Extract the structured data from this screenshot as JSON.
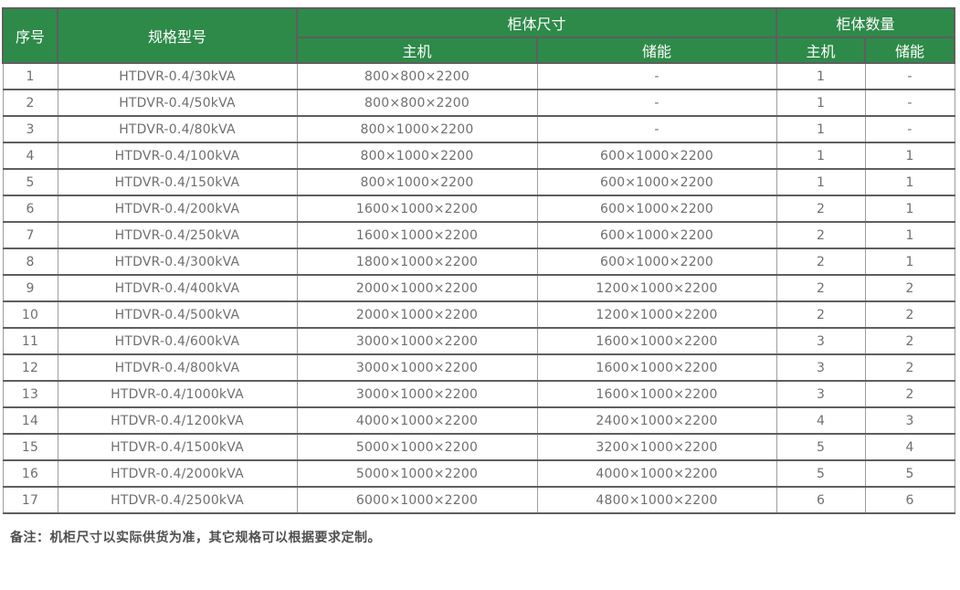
{
  "table": {
    "header": {
      "col_serial": "序号",
      "col_model": "规格型号",
      "group_size": "柜体尺寸",
      "group_qty": "柜体数量",
      "size_sub": {
        "main": "主机",
        "storage": "储能"
      },
      "qty_sub": {
        "main": "主机",
        "storage": "储能"
      }
    },
    "rows": [
      {
        "no": "1",
        "model": "HTDVR-0.4/30kVA",
        "main_size": "800×800×2200",
        "storage_size": "-",
        "main_qty": "1",
        "storage_qty": "-"
      },
      {
        "no": "2",
        "model": "HTDVR-0.4/50kVA",
        "main_size": "800×800×2200",
        "storage_size": "-",
        "main_qty": "1",
        "storage_qty": "-"
      },
      {
        "no": "3",
        "model": "HTDVR-0.4/80kVA",
        "main_size": "800×1000×2200",
        "storage_size": "-",
        "main_qty": "1",
        "storage_qty": "-"
      },
      {
        "no": "4",
        "model": "HTDVR-0.4/100kVA",
        "main_size": "800×1000×2200",
        "storage_size": "600×1000×2200",
        "main_qty": "1",
        "storage_qty": "1"
      },
      {
        "no": "5",
        "model": "HTDVR-0.4/150kVA",
        "main_size": "800×1000×2200",
        "storage_size": "600×1000×2200",
        "main_qty": "1",
        "storage_qty": "1"
      },
      {
        "no": "6",
        "model": "HTDVR-0.4/200kVA",
        "main_size": "1600×1000×2200",
        "storage_size": "600×1000×2200",
        "main_qty": "2",
        "storage_qty": "1"
      },
      {
        "no": "7",
        "model": "HTDVR-0.4/250kVA",
        "main_size": "1600×1000×2200",
        "storage_size": "600×1000×2200",
        "main_qty": "2",
        "storage_qty": "1"
      },
      {
        "no": "8",
        "model": "HTDVR-0.4/300kVA",
        "main_size": "1800×1000×2200",
        "storage_size": "600×1000×2200",
        "main_qty": "2",
        "storage_qty": "1"
      },
      {
        "no": "9",
        "model": "HTDVR-0.4/400kVA",
        "main_size": "2000×1000×2200",
        "storage_size": "1200×1000×2200",
        "main_qty": "2",
        "storage_qty": "2"
      },
      {
        "no": "10",
        "model": "HTDVR-0.4/500kVA",
        "main_size": "2000×1000×2200",
        "storage_size": "1200×1000×2200",
        "main_qty": "2",
        "storage_qty": "2"
      },
      {
        "no": "11",
        "model": "HTDVR-0.4/600kVA",
        "main_size": "3000×1000×2200",
        "storage_size": "1600×1000×2200",
        "main_qty": "3",
        "storage_qty": "2"
      },
      {
        "no": "12",
        "model": "HTDVR-0.4/800kVA",
        "main_size": "3000×1000×2200",
        "storage_size": "1600×1000×2200",
        "main_qty": "3",
        "storage_qty": "2"
      },
      {
        "no": "13",
        "model": "HTDVR-0.4/1000kVA",
        "main_size": "3000×1000×2200",
        "storage_size": "1600×1000×2200",
        "main_qty": "3",
        "storage_qty": "2"
      },
      {
        "no": "14",
        "model": "HTDVR-0.4/1200kVA",
        "main_size": "4000×1000×2200",
        "storage_size": "2400×1000×2200",
        "main_qty": "4",
        "storage_qty": "3"
      },
      {
        "no": "15",
        "model": "HTDVR-0.4/1500kVA",
        "main_size": "5000×1000×2200",
        "storage_size": "3200×1000×2200",
        "main_qty": "5",
        "storage_qty": "4"
      },
      {
        "no": "16",
        "model": "HTDVR-0.4/2000kVA",
        "main_size": "5000×1000×2200",
        "storage_size": "4000×1000×2200",
        "main_qty": "5",
        "storage_qty": "5"
      },
      {
        "no": "17",
        "model": "HTDVR-0.4/2500kVA",
        "main_size": "6000×1000×2200",
        "storage_size": "4800×1000×2200",
        "main_qty": "6",
        "storage_qty": "6"
      }
    ]
  },
  "note": "备注：机柜尺寸以实际供货为准，其它规格可以根据要求定制。",
  "colors": {
    "header_green": "#2e8a49",
    "header_text": "#ffffff",
    "body_text": "#6f6f6f",
    "rule_dark": "#5e5e5e",
    "rule_light": "#9e9e9e"
  }
}
